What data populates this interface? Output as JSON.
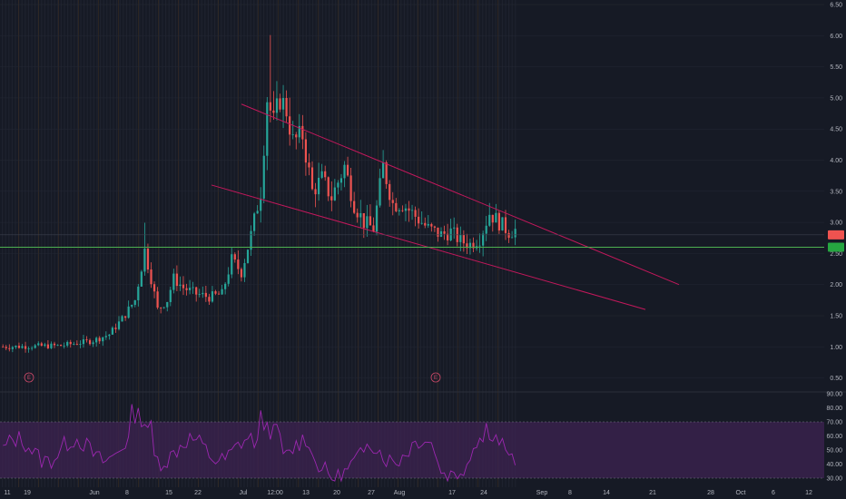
{
  "chart_data": {
    "type": "candlestick",
    "price_ticks": [
      "6.50",
      "6.00",
      "5.50",
      "5.00",
      "4.50",
      "4.00",
      "3.50",
      "3.00",
      "2.50",
      "2.00",
      "1.50",
      "1.00",
      "0.50"
    ],
    "rsi_ticks": [
      "90.00",
      "80.00",
      "70.00",
      "60.00",
      "50.00",
      "40.00",
      "30.00"
    ],
    "x_ticks": [
      "11",
      "19",
      "Jun",
      "8",
      "15",
      "22",
      "Jul",
      "12:00",
      "13",
      "20",
      "27",
      "Aug",
      "17",
      "24",
      "Sep",
      "8",
      "14",
      "21",
      "28",
      "Oct",
      "6",
      "12"
    ],
    "price_range": [
      0.3,
      6.6
    ],
    "rsi_range": [
      25,
      95
    ],
    "rsi_levels": [
      70,
      30
    ],
    "horizontal_line_price": 2.6,
    "current_price_tag": "2.80",
    "support_tag": "2.60",
    "earnings_marker": "E",
    "trendlines": [
      {
        "name": "upper",
        "x": [
          "Jul -2d",
          "Sep 21+"
        ],
        "y": [
          4.9,
          2.0
        ]
      },
      {
        "name": "lower",
        "x": [
          "Jun 22+",
          "Sep 14+"
        ],
        "y": [
          3.6,
          1.6
        ]
      }
    ],
    "colors": {
      "up": "#26a69a",
      "down": "#ef5350",
      "support_line": "#4caf50",
      "trendline": "#c2185b",
      "rsi_line": "#9c27b0",
      "rsi_band": "#3d2352",
      "current_tag_bg": "#ef5350",
      "support_tag_bg": "#26a641"
    }
  }
}
